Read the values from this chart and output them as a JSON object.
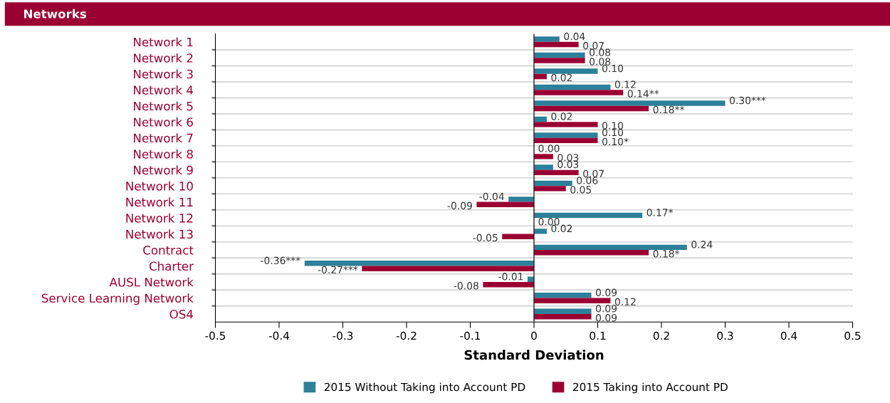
{
  "chart_data": {
    "type": "bar",
    "orientation": "horizontal",
    "title": "Networks",
    "xlabel": "Standard Deviation",
    "categories": [
      "Network 1",
      "Network 2",
      "Network 3",
      "Network 4",
      "Network 5",
      "Network 6",
      "Network 7",
      "Network 8",
      "Network 9",
      "Network 10",
      "Network 11",
      "Network 12",
      "Network 13",
      "Contract",
      "Charter",
      "AUSL Network",
      "Service Learning Network",
      "OS4"
    ],
    "series": [
      {
        "name": "2015 Without Taking into Account PD",
        "color": "#2e7f99",
        "values": [
          0.04,
          0.08,
          0.1,
          0.12,
          0.3,
          0.02,
          0.1,
          0.0,
          0.03,
          0.06,
          -0.04,
          0.17,
          0.02,
          0.24,
          -0.36,
          -0.01,
          0.09,
          0.09
        ],
        "value_labels": [
          "0.04",
          "0.08",
          "0.10",
          "0.12",
          "0.30***",
          "0.02",
          "0.10",
          "0.00",
          "0.03",
          "0.06",
          "-0.04",
          "0.17*",
          "0.02",
          "0.24",
          "-0.36***",
          "-0.01",
          "0.09",
          "0.09"
        ]
      },
      {
        "name": "2015 Taking into Account PD",
        "color": "#9b0032",
        "values": [
          0.07,
          0.08,
          0.02,
          0.14,
          0.18,
          0.1,
          0.1,
          0.03,
          0.07,
          0.05,
          -0.09,
          0.0,
          -0.05,
          0.18,
          -0.27,
          -0.08,
          0.12,
          0.09
        ],
        "value_labels": [
          "0.07",
          "0.08",
          "0.02",
          "0.14**",
          "0.18**",
          "0.10",
          "0.10*",
          "0.03",
          "0.07",
          "0.05",
          "-0.09",
          "0.00",
          "-0.05",
          "0.18*",
          "-0.27***",
          "-0.08",
          "0.12",
          "0.09"
        ]
      }
    ],
    "xlim": [
      -0.5,
      0.5
    ],
    "xticks": [
      -0.5,
      -0.4,
      -0.3,
      -0.2,
      -0.1,
      0,
      0.1,
      0.2,
      0.3,
      0.4,
      0.5
    ],
    "ref_lines": [
      {
        "axis": "x",
        "value": 0,
        "label": null
      }
    ],
    "grid": "y",
    "legend": "bottom"
  }
}
